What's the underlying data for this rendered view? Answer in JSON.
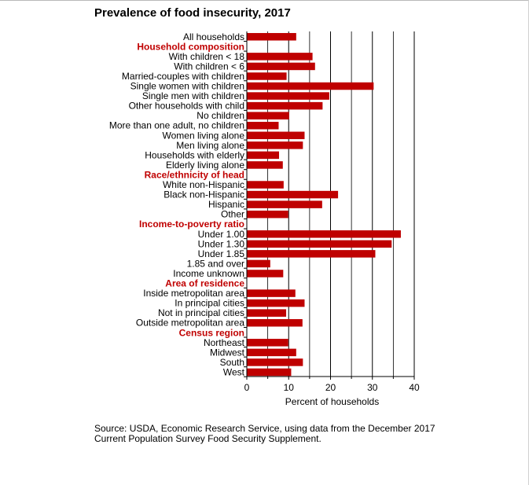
{
  "chart_data": {
    "type": "bar",
    "orientation": "horizontal",
    "title": "Prevalence of food insecurity, 2017",
    "xlabel": "Percent of households",
    "ylabel": "",
    "xlim": [
      0,
      40
    ],
    "x_ticks": [
      "0",
      "10",
      "20",
      "30",
      "40"
    ],
    "grid": "vertical",
    "bar_color": "#bf0000",
    "header_color": "#c00000",
    "rows": [
      {
        "label": "All households",
        "value": 11.8
      },
      {
        "label": "Household composition",
        "header": true
      },
      {
        "label": "With children < 18",
        "value": 15.7
      },
      {
        "label": "With children < 6",
        "value": 16.3
      },
      {
        "label": "Married-couples with children",
        "value": 9.5
      },
      {
        "label": "Single women with children",
        "value": 30.3
      },
      {
        "label": "Single men with children",
        "value": 19.7
      },
      {
        "label": "Other households with child",
        "value": 18.1
      },
      {
        "label": "No children",
        "value": 10.1
      },
      {
        "label": "More than one adult, no children",
        "value": 7.6
      },
      {
        "label": "Women living alone",
        "value": 13.8
      },
      {
        "label": "Men living alone",
        "value": 13.4
      },
      {
        "label": "Households with elderly",
        "value": 7.7
      },
      {
        "label": "Elderly living alone",
        "value": 8.6
      },
      {
        "label": "Race/ethnicity of head",
        "header": true
      },
      {
        "label": "White non-Hispanic",
        "value": 8.8
      },
      {
        "label": "Black non-Hispanic",
        "value": 21.8
      },
      {
        "label": "Hispanic",
        "value": 18.0
      },
      {
        "label": "Other",
        "value": 9.9
      },
      {
        "label": "Income-to-poverty ratio",
        "header": true
      },
      {
        "label": "Under 1.00",
        "value": 36.8
      },
      {
        "label": "Under 1.30",
        "value": 34.6
      },
      {
        "label": "Under 1.85",
        "value": 30.7
      },
      {
        "label": "1.85 and over",
        "value": 5.6
      },
      {
        "label": "Income unknown",
        "value": 8.7
      },
      {
        "label": "Area of residence",
        "header": true
      },
      {
        "label": "Inside metropolitan area",
        "value": 11.6
      },
      {
        "label": "In principal cities",
        "value": 13.8
      },
      {
        "label": "Not in principal cities",
        "value": 9.4
      },
      {
        "label": "Outside metropolitan area",
        "value": 13.3
      },
      {
        "label": "Census region",
        "header": true
      },
      {
        "label": "Northeast",
        "value": 9.9
      },
      {
        "label": "Midwest",
        "value": 11.8
      },
      {
        "label": "South",
        "value": 13.4
      },
      {
        "label": "West",
        "value": 10.6
      }
    ]
  },
  "source": {
    "line1": "Source: USDA, Economic Research Service, using data from the December 2017",
    "line2": "Current Population Survey Food Security Supplement."
  }
}
